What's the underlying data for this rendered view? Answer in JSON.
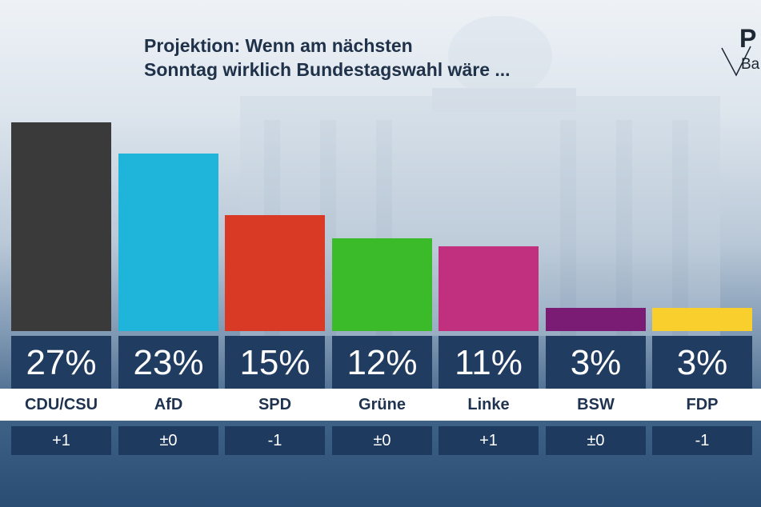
{
  "header": {
    "title_line1": "Projektion: Wenn am nächsten",
    "title_line2": "Sonntag wirklich Bundestagswahl wäre ..."
  },
  "logo": {
    "letter": "P",
    "subtext": "Ba"
  },
  "chart_data": {
    "type": "bar",
    "title": "Projektion: Wenn am nächsten Sonntag wirklich Bundestagswahl wäre ...",
    "categories": [
      "CDU/CSU",
      "AfD",
      "SPD",
      "Grüne",
      "Linke",
      "BSW",
      "FDP"
    ],
    "values": [
      27,
      23,
      15,
      12,
      11,
      3,
      3
    ],
    "value_labels": [
      "27%",
      "23%",
      "15%",
      "12%",
      "11%",
      "3%",
      "3%"
    ],
    "changes": [
      "+1",
      "±0",
      "-1",
      "±0",
      "+1",
      "±0",
      "-1"
    ],
    "colors": [
      "#3a3a3a",
      "#1fb4d9",
      "#d93a26",
      "#3cbb2a",
      "#c0307f",
      "#7a1c74",
      "#f9cf2e"
    ],
    "ylim": [
      0,
      27
    ],
    "unit": "%",
    "grid": false,
    "xlabel": "",
    "ylabel": ""
  }
}
